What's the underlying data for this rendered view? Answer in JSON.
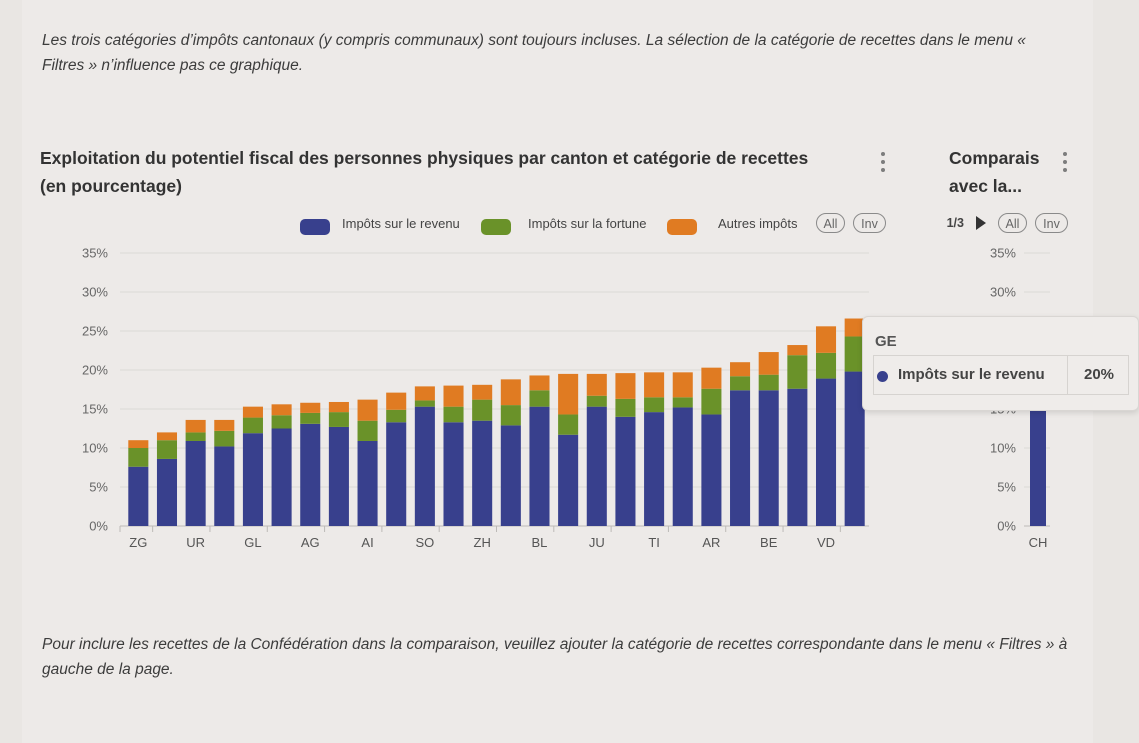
{
  "notes": {
    "top": "Les trois catégories d’impôts cantonaux (y compris communaux) sont toujours incluses. La sélection de la catégorie de recettes dans le menu « Filtres » n’influence pas ce graphique.",
    "bottom": "Pour inclure les recettes de la Confédération dans la comparaison, veuillez ajouter la catégorie de recettes correspondante dans le menu « Filtres » à gauche de la page."
  },
  "legend": {
    "items": [
      "Impôts sur le revenu",
      "Impôts sur la fortune",
      "Autres impôts"
    ],
    "all_label": "All",
    "inv_label": "Inv",
    "pager": "1/3"
  },
  "colors": {
    "revenu": "#38408d",
    "fortune": "#6a9229",
    "autres": "#e07b22"
  },
  "tooltip": {
    "title": "GE",
    "series": "Impôts sur le revenu",
    "value": "20%"
  },
  "chart_data": [
    {
      "type": "bar",
      "stacked": true,
      "title": "Exploitation du potentiel fiscal des personnes physiques par canton et catégorie de recettes (en pourcentage)",
      "categories": [
        "ZG",
        "",
        "UR",
        "",
        "GL",
        "",
        "AG",
        "",
        "AI",
        "",
        "SO",
        "",
        "ZH",
        "",
        "BL",
        "",
        "JU",
        "",
        "TI",
        "",
        "AR",
        "",
        "BE",
        "",
        "VD",
        ""
      ],
      "x_tick_labels": [
        "ZG",
        "UR",
        "GL",
        "AG",
        "AI",
        "SO",
        "ZH",
        "BL",
        "JU",
        "TI",
        "AR",
        "BE",
        "VD"
      ],
      "y_tick_labels": [
        "0%",
        "5%",
        "10%",
        "15%",
        "20%",
        "25%",
        "30%",
        "35%"
      ],
      "ylim": [
        0,
        35
      ],
      "grid": true,
      "legend_position": "top",
      "series": [
        {
          "name": "Impôts sur le revenu",
          "color": "#38408d",
          "values": [
            7.6,
            8.6,
            10.9,
            10.2,
            11.9,
            12.5,
            13.1,
            12.7,
            10.9,
            13.3,
            15.3,
            13.3,
            13.5,
            12.9,
            15.3,
            11.7,
            15.3,
            14.0,
            14.6,
            15.2,
            14.3,
            17.4,
            17.4,
            17.6,
            18.9,
            19.8
          ]
        },
        {
          "name": "Impôts sur la fortune",
          "color": "#6a9229",
          "values": [
            2.4,
            2.4,
            1.1,
            2.0,
            2.0,
            1.7,
            1.4,
            1.9,
            2.6,
            1.6,
            0.8,
            2.0,
            2.7,
            2.6,
            2.1,
            2.6,
            1.4,
            2.3,
            1.9,
            1.3,
            3.3,
            1.8,
            2.0,
            4.3,
            3.3,
            4.5
          ]
        },
        {
          "name": "Autres impôts",
          "color": "#e07b22",
          "values": [
            1.0,
            1.0,
            1.6,
            1.4,
            1.4,
            1.4,
            1.3,
            1.3,
            2.7,
            2.2,
            1.8,
            2.7,
            1.9,
            3.3,
            1.9,
            5.2,
            2.8,
            3.3,
            3.2,
            3.2,
            2.7,
            1.8,
            2.9,
            1.3,
            3.4,
            2.3
          ]
        }
      ]
    },
    {
      "type": "bar",
      "title": "Comparais avec la...",
      "categories": [
        "CH"
      ],
      "y_tick_labels": [
        "0%",
        "5%",
        "10%",
        "15%",
        "20%",
        "25%",
        "30%",
        "35%"
      ],
      "ylim": [
        0,
        35
      ],
      "grid": true,
      "series": [
        {
          "name": "Impôts sur le revenu",
          "color": "#38408d",
          "values": [
            17.5
          ]
        }
      ]
    }
  ]
}
